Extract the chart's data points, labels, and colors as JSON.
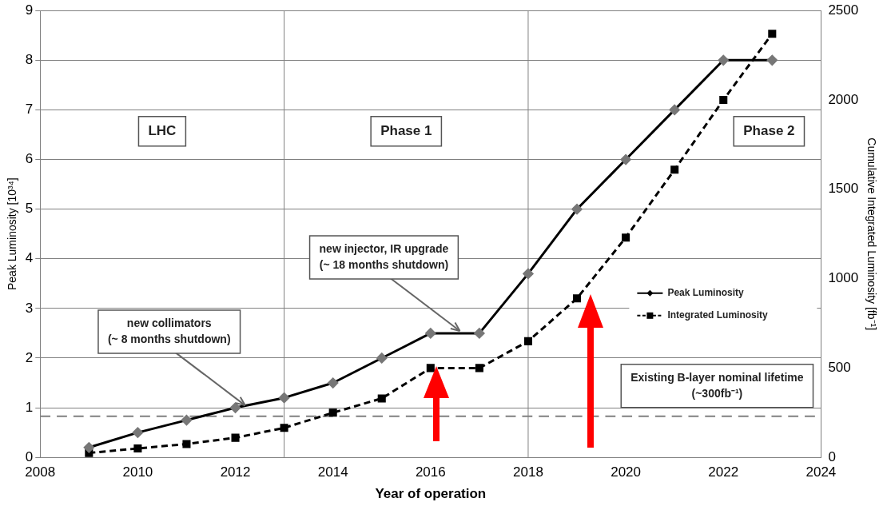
{
  "chart_data": {
    "type": "line",
    "xlabel": "Year of operation",
    "ylabel": "Peak Luminosity [10³⁴]",
    "y2label": "Cumulative Integrated Luminosity [fb⁻¹]",
    "x": [
      2009,
      2010,
      2011,
      2012,
      2013,
      2014,
      2015,
      2016,
      2017,
      2018,
      2019,
      2020,
      2021,
      2022,
      2023
    ],
    "series": [
      {
        "name": "Peak Luminosity",
        "color": "#000000",
        "marker": "diamond",
        "line_style": "solid",
        "values": [
          0.2,
          0.5,
          0.75,
          1.0,
          1.2,
          1.5,
          2.0,
          2.5,
          2.5,
          3.7,
          5.0,
          6.0,
          7.0,
          8.0,
          8.0
        ]
      },
      {
        "name": "Integrated Luminosity",
        "color": "#000000",
        "marker": "square",
        "line_style": "dashed",
        "axis": "y2",
        "values": [
          25,
          50,
          75,
          110,
          165,
          250,
          330,
          500,
          500,
          650,
          890,
          1230,
          1610,
          2000,
          2370
        ]
      }
    ],
    "xlim": [
      2008,
      2024
    ],
    "xticks": [
      2008,
      2010,
      2012,
      2014,
      2016,
      2018,
      2020,
      2022,
      2024
    ],
    "ylim": [
      0,
      9
    ],
    "yticks": [
      0,
      1,
      2,
      3,
      4,
      5,
      6,
      7,
      8,
      9
    ],
    "y2lim": [
      0,
      2500
    ],
    "y2ticks": [
      0,
      500,
      1000,
      1500,
      2000,
      2500
    ],
    "grid": "y",
    "legend": "right",
    "ref_lines": [
      {
        "axis": "x",
        "value": 2013,
        "color": "#808080",
        "line_style": "solid"
      },
      {
        "axis": "x",
        "value": 2018,
        "color": "#808080",
        "line_style": "solid"
      },
      {
        "axis": "y",
        "value": 0.83,
        "color": "#808080",
        "line_style": "dashed",
        "label": "Existing B-layer nominal lifetime (~300fb⁻¹)"
      }
    ],
    "annotations": [
      "LHC",
      "Phase 1",
      "Phase 2",
      {
        "text": "new collimators (~ 8 months shutdown)",
        "x": 2012.2,
        "y": 1.0
      },
      {
        "text": "new injector, IR upgrade (~ 18 months shutdown)",
        "x": 2016.6,
        "y": 2.5
      }
    ]
  }
}
